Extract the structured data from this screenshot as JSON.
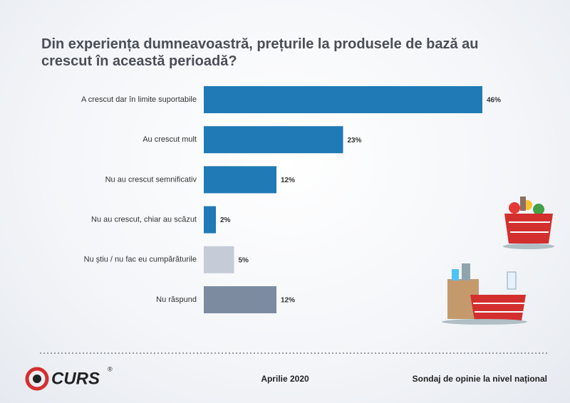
{
  "chart_data": {
    "type": "bar",
    "orientation": "horizontal",
    "title": "Din experiența dumneavoastră, prețurile la produsele de bază au crescut în această perioadă?",
    "categories": [
      "A crescut dar în limite suportabile",
      "Au crescut mult",
      "Nu au crescut semnificativ",
      "Nu au crescut, chiar au scăzut",
      "Nu știu / nu fac eu cumpărăturile",
      "Nu răspund"
    ],
    "values": [
      46,
      23,
      12,
      2,
      5,
      12
    ],
    "value_labels": [
      "46%",
      "23%",
      "12%",
      "2%",
      "5%",
      "12%"
    ],
    "colors": [
      "#1f7ab5",
      "#1f7ab5",
      "#1f7ab5",
      "#1f7ab5",
      "#c5cbd7",
      "#7d8ba1"
    ]
  },
  "footer": {
    "logo": "CURS",
    "registered": "®",
    "date": "Aprilie 2020",
    "note": "Sondaj de opinie la nivel național"
  }
}
